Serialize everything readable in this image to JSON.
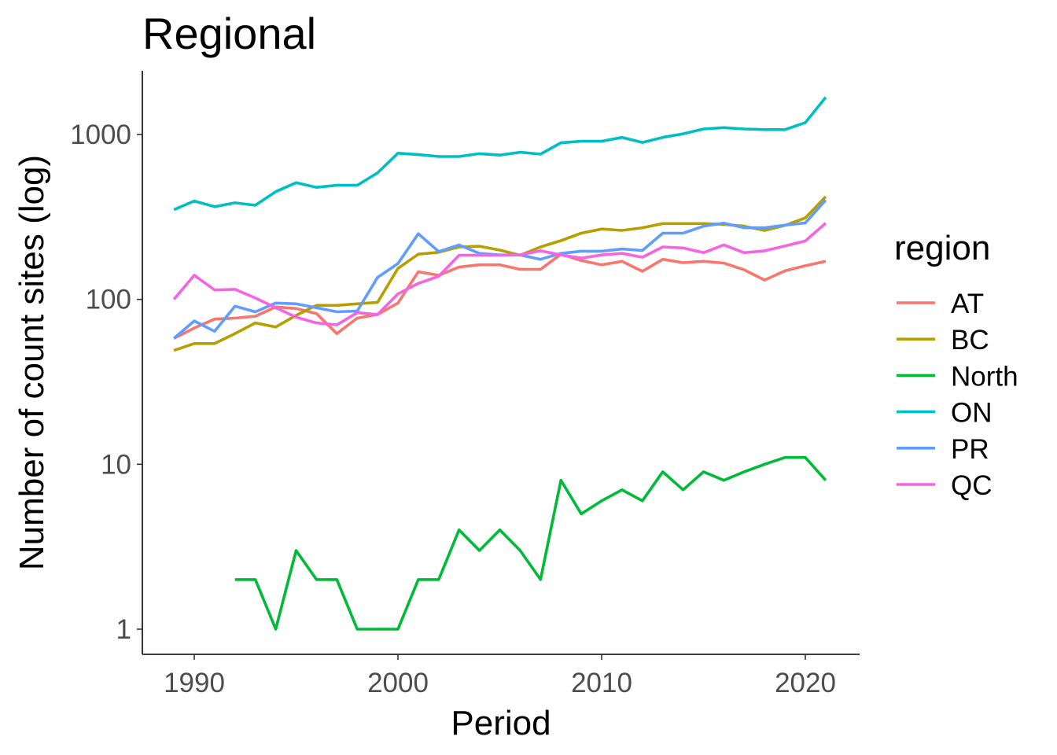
{
  "chart_data": {
    "type": "line",
    "title": "Regional",
    "xlabel": "Period",
    "ylabel": "Number of count sites (log)",
    "yscale": "log10",
    "xlim": [
      1987.5,
      2022.7
    ],
    "ylim": [
      0.8,
      2400
    ],
    "x_ticks": [
      1990,
      2000,
      2010,
      2020
    ],
    "x_tick_labels": [
      "1990",
      "2000",
      "2010",
      "2020"
    ],
    "y_ticks": [
      1,
      10,
      100,
      1000
    ],
    "y_tick_labels": [
      "1",
      "10",
      "100",
      "1000"
    ],
    "grid": false,
    "legend": {
      "title": "region",
      "placement": "right"
    },
    "series": [
      {
        "name": "AT",
        "color": "#F8766D",
        "x": [
          1989,
          1990,
          1991,
          1992,
          1993,
          1994,
          1995,
          1996,
          1997,
          1998,
          1999,
          2000,
          2001,
          2002,
          2003,
          2004,
          2005,
          2006,
          2007,
          2008,
          2009,
          2010,
          2011,
          2012,
          2013,
          2014,
          2015,
          2016,
          2017,
          2018,
          2019,
          2020,
          2021
        ],
        "y": [
          58,
          67,
          76,
          77,
          79,
          90,
          88,
          82,
          62,
          77,
          81,
          95,
          147,
          140,
          157,
          162,
          162,
          152,
          152,
          188,
          172,
          162,
          170,
          148,
          175,
          167,
          170,
          166,
          151,
          131,
          149,
          160,
          170
        ]
      },
      {
        "name": "BC",
        "color": "#B79F00",
        "x": [
          1989,
          1990,
          1991,
          1992,
          1993,
          1994,
          1995,
          1996,
          1997,
          1998,
          1999,
          2000,
          2001,
          2002,
          2003,
          2004,
          2005,
          2006,
          2007,
          2008,
          2009,
          2010,
          2011,
          2012,
          2013,
          2014,
          2015,
          2016,
          2017,
          2018,
          2019,
          2020,
          2021
        ],
        "y": [
          49,
          54,
          54,
          62,
          72,
          68,
          80,
          92,
          92,
          94,
          96,
          154,
          188,
          193,
          208,
          210,
          199,
          185,
          208,
          227,
          252,
          267,
          262,
          272,
          288,
          288,
          288,
          285,
          278,
          262,
          281,
          312,
          420
        ]
      },
      {
        "name": "North",
        "color": "#00BA38",
        "x": [
          1992,
          1993,
          1994,
          1995,
          1996,
          1997,
          1998,
          1999,
          2000,
          2001,
          2002,
          2003,
          2004,
          2005,
          2006,
          2007,
          2008,
          2009,
          2010,
          2011,
          2012,
          2013,
          2014,
          2015,
          2016,
          2017,
          2018,
          2019,
          2020,
          2021
        ],
        "y": [
          2,
          2,
          1,
          3,
          2,
          2,
          1,
          1,
          1,
          2,
          2,
          4,
          3,
          4,
          3,
          2,
          8,
          5,
          6,
          7,
          6,
          9,
          7,
          9,
          8,
          9,
          10,
          11,
          11,
          8
        ]
      },
      {
        "name": "ON",
        "color": "#00BFC4",
        "x": [
          1989,
          1990,
          1991,
          1992,
          1993,
          1994,
          1995,
          1996,
          1997,
          1998,
          1999,
          2000,
          2001,
          2002,
          2003,
          2004,
          2005,
          2006,
          2007,
          2008,
          2009,
          2010,
          2011,
          2012,
          2013,
          2014,
          2015,
          2016,
          2017,
          2018,
          2019,
          2020,
          2021
        ],
        "y": [
          350,
          395,
          365,
          385,
          372,
          450,
          510,
          478,
          492,
          492,
          585,
          770,
          755,
          735,
          735,
          765,
          750,
          780,
          760,
          890,
          910,
          910,
          960,
          895,
          960,
          1010,
          1080,
          1100,
          1080,
          1070,
          1070,
          1180,
          1680
        ]
      },
      {
        "name": "PR",
        "color": "#619CFF",
        "x": [
          1989,
          1990,
          1991,
          1992,
          1993,
          1994,
          1995,
          1996,
          1997,
          1998,
          1999,
          2000,
          2001,
          2002,
          2003,
          2004,
          2005,
          2006,
          2007,
          2008,
          2009,
          2010,
          2011,
          2012,
          2013,
          2014,
          2015,
          2016,
          2017,
          2018,
          2019,
          2020,
          2021
        ],
        "y": [
          58,
          74,
          64,
          91,
          84,
          95,
          94,
          89,
          84,
          85,
          136,
          165,
          250,
          195,
          214,
          190,
          186,
          186,
          175,
          190,
          196,
          196,
          202,
          198,
          252,
          252,
          278,
          290,
          272,
          272,
          282,
          291,
          400
        ]
      },
      {
        "name": "QC",
        "color": "#F564E3",
        "x": [
          1989,
          1990,
          1991,
          1992,
          1993,
          1994,
          1995,
          1996,
          1997,
          1998,
          1999,
          2000,
          2001,
          2002,
          2003,
          2004,
          2005,
          2006,
          2007,
          2008,
          2009,
          2010,
          2011,
          2012,
          2013,
          2014,
          2015,
          2016,
          2017,
          2018,
          2019,
          2020,
          2021
        ],
        "y": [
          100,
          140,
          114,
          115,
          102,
          89,
          78,
          72,
          70,
          83,
          81,
          108,
          125,
          138,
          185,
          185,
          185,
          186,
          197,
          186,
          178,
          186,
          190,
          180,
          208,
          205,
          192,
          214,
          192,
          197,
          211,
          226,
          290
        ]
      }
    ]
  }
}
